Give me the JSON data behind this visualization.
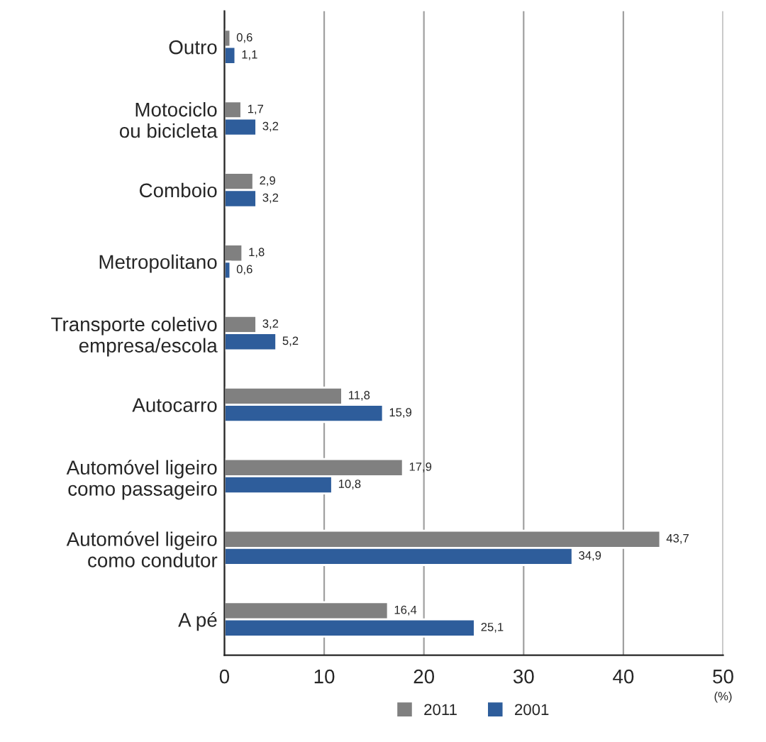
{
  "chart_data": {
    "type": "bar",
    "orientation": "horizontal",
    "xlabel": "(%)",
    "categories": [
      "Outro",
      "Motociclo\nou bicicleta",
      "Comboio",
      "Metropolitano",
      "Transporte coletivo\nempresa/escola",
      "Autocarro",
      "Automóvel ligeiro\ncomo passageiro",
      "Automóvel ligeiro\ncomo condutor",
      "A pé"
    ],
    "series": [
      {
        "name": "2011",
        "color": "#808080",
        "values": [
          0.6,
          1.7,
          2.9,
          1.8,
          3.2,
          11.8,
          17.9,
          43.7,
          16.4
        ],
        "value_labels": [
          "0,6",
          "1,7",
          "2,9",
          "1,8",
          "3,2",
          "11,8",
          "17,9",
          "43,7",
          "16,4"
        ]
      },
      {
        "name": "2001",
        "color": "#2e5d9b",
        "values": [
          1.1,
          3.2,
          3.2,
          0.6,
          5.2,
          15.9,
          10.8,
          34.9,
          25.1
        ],
        "value_labels": [
          "1,1",
          "3,2",
          "3,2",
          "0,6",
          "5,2",
          "15,9",
          "10,8",
          "34,9",
          "25,1"
        ]
      }
    ],
    "xlim": [
      0,
      50
    ],
    "xticks": [
      0,
      10,
      20,
      30,
      40,
      50
    ],
    "grid": "x",
    "legend": "bottom"
  }
}
